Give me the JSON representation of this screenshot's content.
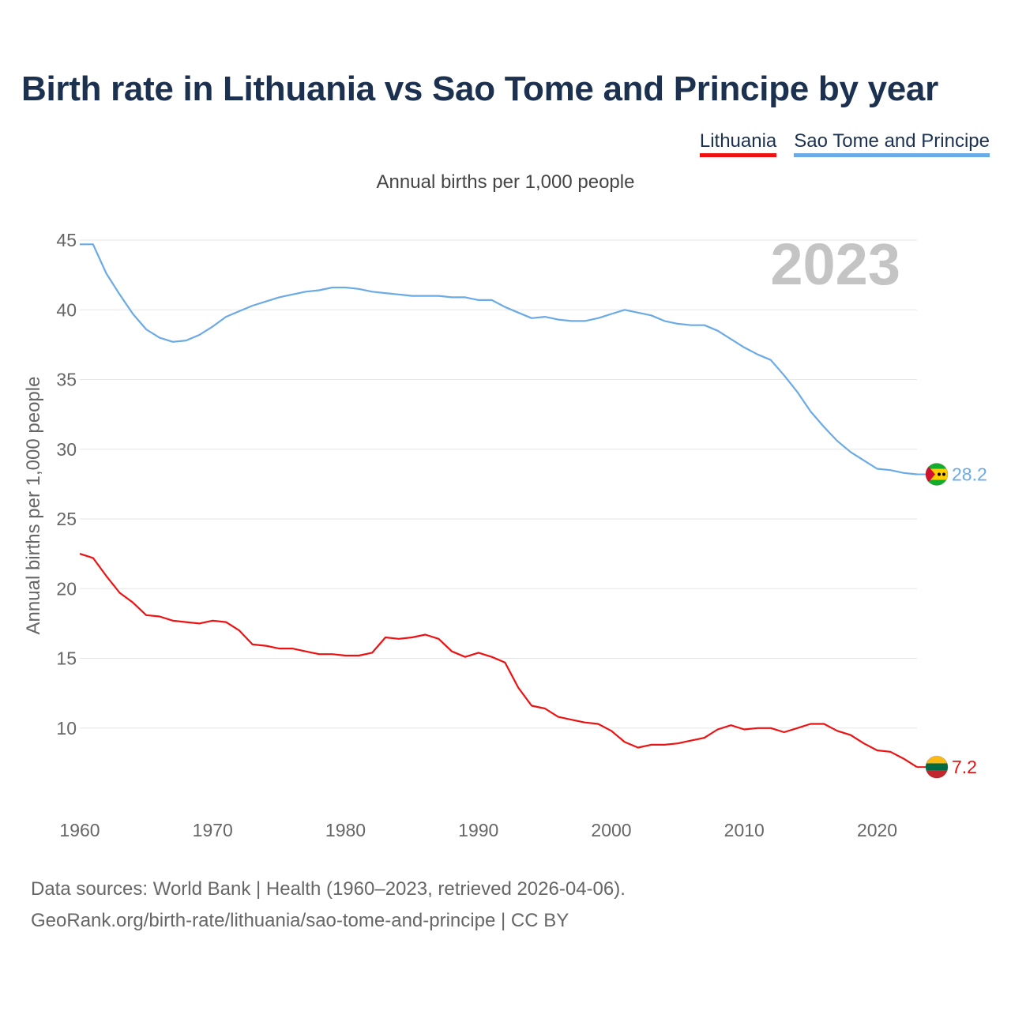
{
  "chart_data": {
    "type": "line",
    "title": "Birth rate in Lithuania vs Sao Tome and Principe by year",
    "subtitle": "Annual births per 1,000 people",
    "ylabel": "Annual births per 1,000 people",
    "xlabel": "",
    "year_label": "2023",
    "xlim": [
      1960,
      2023
    ],
    "ylim": [
      5,
      45
    ],
    "yticks": [
      10,
      15,
      20,
      25,
      30,
      35,
      40,
      45
    ],
    "xticks": [
      1960,
      1970,
      1980,
      1990,
      2000,
      2010,
      2020
    ],
    "grid": true,
    "legend": "top-right",
    "x": [
      1960,
      1961,
      1962,
      1963,
      1964,
      1965,
      1966,
      1967,
      1968,
      1969,
      1970,
      1971,
      1972,
      1973,
      1974,
      1975,
      1976,
      1977,
      1978,
      1979,
      1980,
      1981,
      1982,
      1983,
      1984,
      1985,
      1986,
      1987,
      1988,
      1989,
      1990,
      1991,
      1992,
      1993,
      1994,
      1995,
      1996,
      1997,
      1998,
      1999,
      2000,
      2001,
      2002,
      2003,
      2004,
      2005,
      2006,
      2007,
      2008,
      2009,
      2010,
      2011,
      2012,
      2013,
      2014,
      2015,
      2016,
      2017,
      2018,
      2019,
      2020,
      2021,
      2022,
      2023
    ],
    "series": [
      {
        "name": "Lithuania",
        "color": "#ee1111",
        "end_label": "7.2",
        "flag_colors": [
          "#fdb913",
          "#006a44",
          "#c1272d"
        ],
        "values": [
          22.5,
          22.2,
          20.9,
          19.7,
          19.0,
          18.1,
          18.0,
          17.7,
          17.6,
          17.5,
          17.7,
          17.6,
          17.0,
          16.0,
          15.9,
          15.7,
          15.7,
          15.5,
          15.3,
          15.3,
          15.2,
          15.2,
          15.4,
          16.5,
          16.4,
          16.5,
          16.7,
          16.4,
          15.5,
          15.1,
          15.4,
          15.1,
          14.7,
          12.9,
          11.6,
          11.4,
          10.8,
          10.6,
          10.4,
          10.3,
          9.8,
          9.0,
          8.6,
          8.8,
          8.8,
          8.9,
          9.1,
          9.3,
          9.9,
          10.2,
          9.9,
          10.0,
          10.0,
          9.7,
          10.0,
          10.3,
          10.3,
          9.8,
          9.5,
          8.9,
          8.4,
          8.3,
          7.8,
          7.2
        ]
      },
      {
        "name": "Sao Tome and Principe",
        "color": "#6aaae6",
        "end_label": "28.2",
        "flag_colors": [
          "#12ad2b",
          "#ffce00",
          "#d21034",
          "#000000"
        ],
        "values": [
          44.7,
          44.7,
          42.6,
          41.1,
          39.7,
          38.6,
          38.0,
          37.7,
          37.8,
          38.2,
          38.8,
          39.5,
          39.9,
          40.3,
          40.6,
          40.9,
          41.1,
          41.3,
          41.4,
          41.6,
          41.6,
          41.5,
          41.3,
          41.2,
          41.1,
          41.0,
          41.0,
          41.0,
          40.9,
          40.9,
          40.7,
          40.7,
          40.2,
          39.8,
          39.4,
          39.5,
          39.3,
          39.2,
          39.2,
          39.4,
          39.7,
          40.0,
          39.8,
          39.6,
          39.2,
          39.0,
          38.9,
          38.9,
          38.5,
          37.9,
          37.3,
          36.8,
          36.4,
          35.3,
          34.1,
          32.7,
          31.6,
          30.6,
          29.8,
          29.2,
          28.6,
          28.5,
          28.3,
          28.2
        ]
      }
    ]
  },
  "footer": {
    "line1": "Data sources: World Bank | Health (1960–2023, retrieved 2026-04-06).",
    "line2": "GeoRank.org/birth-rate/lithuania/sao-tome-and-principe | CC BY"
  }
}
